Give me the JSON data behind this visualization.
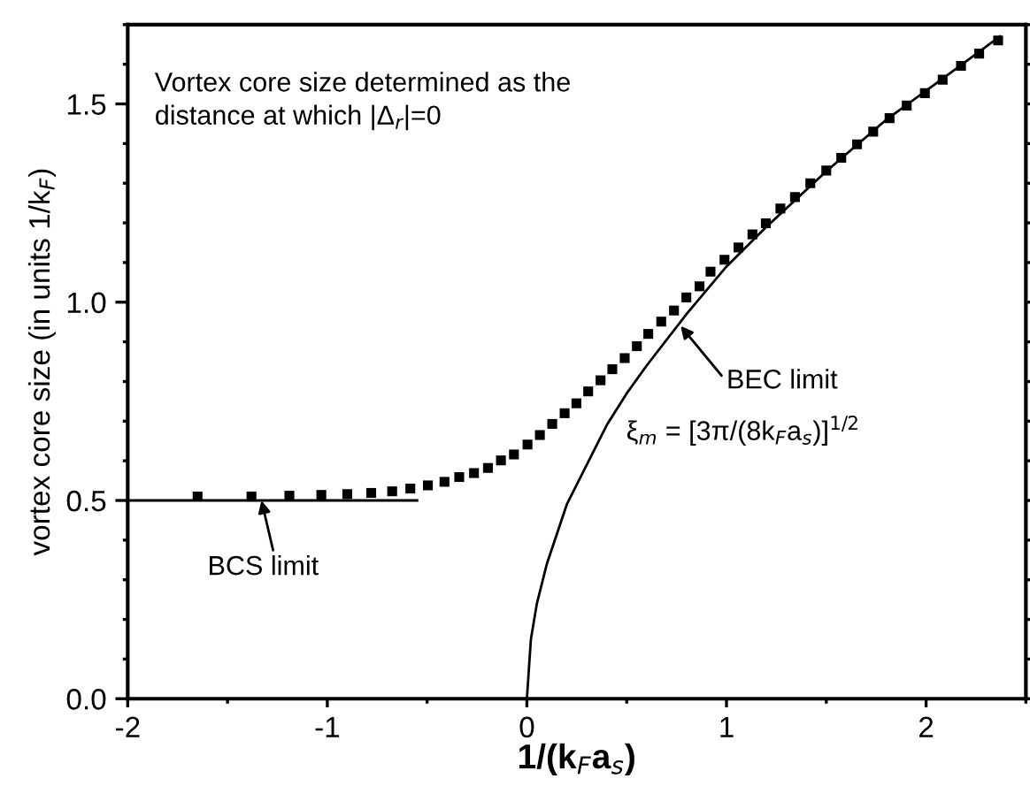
{
  "chart_data": {
    "type": "scatter",
    "xlabel": "1/(k$_{F}$a$_{s}$)",
    "ylabel": "vortex core size (in units 1/k$_{F}$)",
    "xlim": [
      -2,
      2.5
    ],
    "ylim": [
      0,
      1.7
    ],
    "xticks": [
      -2,
      -1,
      0,
      1,
      2
    ],
    "yticks": [
      {
        "value": 0,
        "label": "0.0"
      },
      0.5,
      {
        "value": 1,
        "label": "1.0"
      },
      1.5
    ],
    "grid": false,
    "series": [
      {
        "marker": "square",
        "color": "#000000",
        "x": [
          -1.65,
          -1.38,
          -1.19,
          -1.03,
          -0.9,
          -0.78,
          -0.675,
          -0.584,
          -0.496,
          -0.413,
          -0.339,
          -0.265,
          -0.195,
          -0.13,
          -0.065,
          0.003,
          0.065,
          0.127,
          0.189,
          0.248,
          0.307,
          0.369,
          0.428,
          0.49,
          0.551,
          0.608,
          0.673,
          0.737,
          0.799,
          0.865,
          0.92,
          0.99,
          1.06,
          1.13,
          1.197,
          1.27,
          1.343,
          1.42,
          1.5,
          1.575,
          1.654,
          1.735,
          1.817,
          1.903,
          1.994,
          2.083,
          2.175,
          2.266,
          2.361
        ],
        "values": [
          0.51,
          0.51,
          0.512,
          0.514,
          0.516,
          0.519,
          0.523,
          0.53,
          0.538,
          0.547,
          0.559,
          0.569,
          0.582,
          0.601,
          0.616,
          0.641,
          0.665,
          0.693,
          0.72,
          0.745,
          0.775,
          0.803,
          0.831,
          0.859,
          0.889,
          0.92,
          0.951,
          0.979,
          1.012,
          1.04,
          1.077,
          1.107,
          1.138,
          1.171,
          1.199,
          1.236,
          1.265,
          1.3,
          1.332,
          1.364,
          1.398,
          1.43,
          1.464,
          1.496,
          1.527,
          1.561,
          1.596,
          1.627,
          1.66
        ]
      },
      {
        "type": "line",
        "color": "#000000",
        "line_style": "solid",
        "x": [
          0,
          0.02,
          0.05,
          0.1,
          0.2,
          0.3,
          0.4,
          0.5,
          0.6,
          0.8,
          1.0,
          1.2,
          1.5,
          1.8,
          2.1,
          2.37
        ],
        "values": [
          0,
          0.15,
          0.24,
          0.34,
          0.49,
          0.59,
          0.69,
          0.77,
          0.84,
          0.97,
          1.09,
          1.19,
          1.33,
          1.46,
          1.57,
          1.67
        ]
      },
      {
        "type": "line",
        "color": "#000000",
        "line_style": "solid",
        "x": [
          -2,
          -0.55
        ],
        "values": [
          0.5,
          0.5
        ]
      }
    ],
    "annotations": [
      "Vortex core size determined as the\ndistance at which |Δ$_{r}$|=0",
      {
        "text": "BEC limit",
        "x": 0.77,
        "y": 0.94
      },
      "ξ$_{m}$ = [3π/(8k$_{F}$a$_{s}$)]$^{1/2}$",
      {
        "text": "BCS limit",
        "x": -1.33,
        "y": 0.5
      }
    ]
  }
}
